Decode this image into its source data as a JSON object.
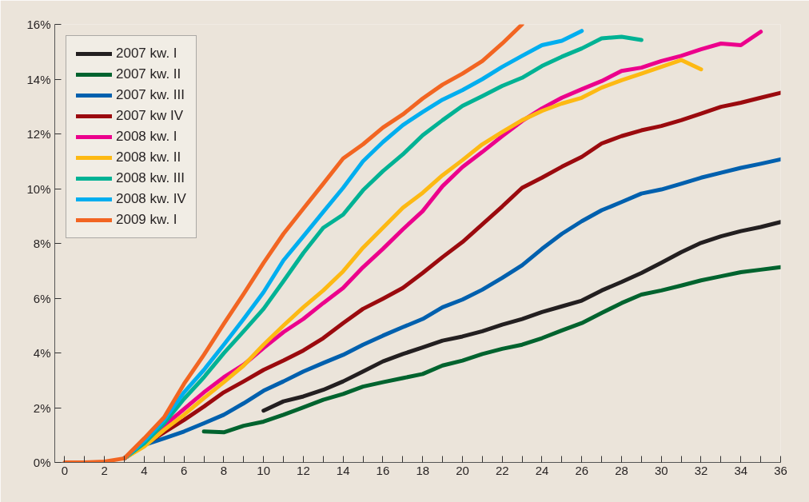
{
  "chart_data": {
    "type": "line",
    "x": [
      0,
      1,
      2,
      3,
      4,
      5,
      6,
      7,
      8,
      9,
      10,
      11,
      12,
      13,
      14,
      15,
      16,
      17,
      18,
      19,
      20,
      21,
      22,
      23,
      24,
      25,
      26,
      27,
      28,
      29,
      30,
      31,
      32,
      33,
      34,
      35,
      36
    ],
    "xlim": [
      -0.5,
      36
    ],
    "ylim": [
      0,
      16
    ],
    "xticks": [
      0,
      {
        "value": 1,
        "label": null
      },
      2,
      {
        "value": 3,
        "label": null
      },
      4,
      {
        "value": 5,
        "label": null
      },
      6,
      {
        "value": 7,
        "label": null
      },
      8,
      {
        "value": 9,
        "label": null
      },
      10,
      {
        "value": 11,
        "label": null
      },
      12,
      {
        "value": 13,
        "label": null
      },
      14,
      {
        "value": 15,
        "label": null
      },
      16,
      {
        "value": 17,
        "label": null
      },
      18,
      {
        "value": 19,
        "label": null
      },
      20,
      {
        "value": 21,
        "label": null
      },
      22,
      {
        "value": 23,
        "label": null
      },
      24,
      {
        "value": 25,
        "label": null
      },
      26,
      {
        "value": 27,
        "label": null
      },
      28,
      {
        "value": 29,
        "label": null
      },
      30,
      {
        "value": 31,
        "label": null
      },
      32,
      {
        "value": 33,
        "label": null
      },
      34,
      {
        "value": 35,
        "label": null
      },
      36
    ],
    "yticks": [
      {
        "value": 0,
        "label": "0%"
      },
      {
        "value": 2,
        "label": "2%"
      },
      {
        "value": 4,
        "label": "4%"
      },
      {
        "value": 6,
        "label": "6%"
      },
      {
        "value": 8,
        "label": "8%"
      },
      {
        "value": 10,
        "label": "10%"
      },
      {
        "value": 12,
        "label": "12%"
      },
      {
        "value": 14,
        "label": "14%"
      },
      {
        "value": 16,
        "label": "16%"
      }
    ],
    "grid": false,
    "legend": "top left",
    "marker": "none",
    "line_style": "solid",
    "series": [
      {
        "name": "2007 kw. I",
        "color": "#231f20",
        "values": [
          null,
          null,
          null,
          null,
          null,
          null,
          null,
          null,
          null,
          null,
          1.89,
          2.23,
          2.41,
          2.65,
          2.96,
          3.32,
          3.69,
          3.96,
          4.2,
          4.45,
          4.6,
          4.79,
          5.03,
          5.24,
          5.49,
          5.7,
          5.91,
          6.28,
          6.59,
          6.92,
          7.29,
          7.68,
          8.02,
          8.26,
          8.45,
          8.6,
          8.78
        ]
      },
      {
        "name": "2007 kw. II",
        "color": "#00632e",
        "values": [
          null,
          null,
          null,
          null,
          null,
          null,
          null,
          1.13,
          1.1,
          1.34,
          1.49,
          1.74,
          2.01,
          2.29,
          2.5,
          2.77,
          2.93,
          3.08,
          3.23,
          3.54,
          3.72,
          3.96,
          4.15,
          4.3,
          4.54,
          4.82,
          5.09,
          5.46,
          5.82,
          6.13,
          6.28,
          6.46,
          6.65,
          6.8,
          6.95,
          7.04,
          7.13
        ]
      },
      {
        "name": "2007 kw. III",
        "color": "#0060ae",
        "values": [
          null,
          null,
          null,
          0.15,
          0.64,
          0.88,
          1.13,
          1.43,
          1.74,
          2.16,
          2.62,
          2.96,
          3.32,
          3.63,
          3.93,
          4.3,
          4.63,
          4.94,
          5.24,
          5.67,
          5.95,
          6.31,
          6.74,
          7.2,
          7.8,
          8.35,
          8.81,
          9.21,
          9.51,
          9.82,
          9.97,
          10.18,
          10.4,
          10.58,
          10.76,
          10.91,
          11.07
        ]
      },
      {
        "name": "2007 kw IV",
        "color": "#9b0a0e",
        "values": [
          null,
          null,
          null,
          0.15,
          0.64,
          1.1,
          1.55,
          2.04,
          2.56,
          2.96,
          3.38,
          3.72,
          4.09,
          4.54,
          5.09,
          5.61,
          5.98,
          6.37,
          6.92,
          7.5,
          8.05,
          8.7,
          9.35,
          10.03,
          10.4,
          10.8,
          11.16,
          11.65,
          11.92,
          12.13,
          12.29,
          12.5,
          12.74,
          12.99,
          13.14,
          13.32,
          13.5
        ]
      },
      {
        "name": "2008 kw. I",
        "color": "#ec008c",
        "values": [
          null,
          null,
          null,
          0.15,
          0.64,
          1.34,
          1.95,
          2.56,
          3.11,
          3.57,
          4.18,
          4.76,
          5.24,
          5.82,
          6.37,
          7.13,
          7.8,
          8.51,
          9.18,
          10.09,
          10.79,
          11.34,
          11.92,
          12.47,
          12.93,
          13.32,
          13.63,
          13.93,
          14.3,
          14.42,
          14.66,
          14.85,
          15.09,
          15.3,
          15.24,
          15.73,
          null
        ]
      },
      {
        "name": "2008 kw. II",
        "color": "#fdb913",
        "values": [
          null,
          null,
          null,
          0.15,
          0.58,
          1.19,
          1.74,
          2.35,
          2.93,
          3.54,
          4.3,
          5.0,
          5.67,
          6.28,
          6.98,
          7.84,
          8.57,
          9.3,
          9.85,
          10.49,
          11.04,
          11.62,
          12.07,
          12.5,
          12.84,
          13.11,
          13.32,
          13.69,
          13.96,
          14.2,
          14.45,
          14.7,
          14.36,
          null,
          null,
          null,
          null
        ]
      },
      {
        "name": "2008 kw. III",
        "color": "#00b294",
        "values": [
          null,
          null,
          null,
          0.15,
          0.7,
          1.43,
          2.32,
          3.11,
          3.99,
          4.79,
          5.61,
          6.62,
          7.65,
          8.57,
          9.05,
          9.94,
          10.64,
          11.25,
          11.95,
          12.5,
          13.02,
          13.38,
          13.75,
          14.05,
          14.48,
          14.82,
          15.12,
          15.49,
          15.55,
          15.43,
          null,
          null,
          null,
          null,
          null,
          null,
          null
        ]
      },
      {
        "name": "2008 kw. IV",
        "color": "#00aeef",
        "values": [
          null,
          null,
          null,
          0.15,
          0.79,
          1.55,
          2.56,
          3.38,
          4.3,
          5.24,
          6.22,
          7.38,
          8.26,
          9.15,
          10.03,
          11.0,
          11.7,
          12.32,
          12.8,
          13.25,
          13.6,
          14.0,
          14.45,
          14.85,
          15.24,
          15.4,
          15.76,
          null,
          null,
          null,
          null,
          null,
          null,
          null,
          null,
          null,
          null
        ]
      },
      {
        "name": "2009 kw. I",
        "color": "#f26522",
        "values": [
          0,
          0,
          0.03,
          0.15,
          0.88,
          1.65,
          2.87,
          3.93,
          5.06,
          6.16,
          7.29,
          8.35,
          9.27,
          10.18,
          11.1,
          11.62,
          12.23,
          12.71,
          13.29,
          13.8,
          14.2,
          14.66,
          15.3,
          16.0,
          null,
          null,
          null,
          null,
          null,
          null,
          null,
          null,
          null,
          null,
          null,
          null,
          null
        ]
      }
    ]
  }
}
